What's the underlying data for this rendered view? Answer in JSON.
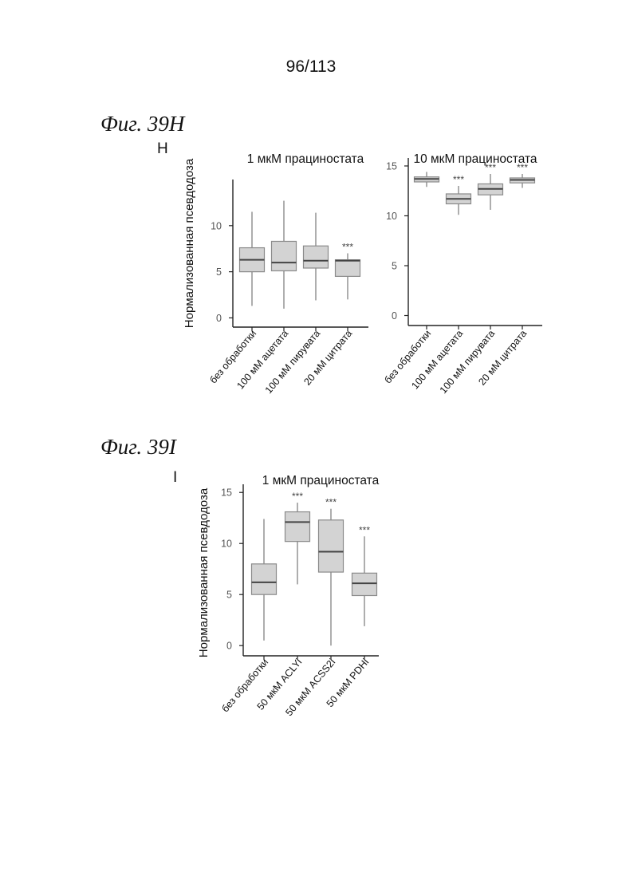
{
  "page_number": "96/113",
  "figures": {
    "fig_h_caption": "Фиг. 39H",
    "fig_h_letter": "H",
    "fig_i_caption": "Фиг. 39I",
    "fig_i_letter": "I"
  },
  "chart_data": [
    {
      "type": "box",
      "title": "1 мкМ прациностата",
      "ylabel": "Нормализованная псевдодоза",
      "xlabel": "",
      "ylim": [
        -1,
        15
      ],
      "yticks": [
        0,
        5,
        10
      ],
      "categories": [
        "без обработки",
        "100 мМ ацетата",
        "100 мМ пирувата",
        "20 мМ цитрата"
      ],
      "boxes": [
        {
          "min": 1.3,
          "q1": 5.0,
          "median": 6.3,
          "q3": 7.6,
          "max": 11.5,
          "sig": ""
        },
        {
          "min": 1.0,
          "q1": 5.1,
          "median": 6.0,
          "q3": 8.3,
          "max": 12.7,
          "sig": ""
        },
        {
          "min": 1.9,
          "q1": 5.4,
          "median": 6.2,
          "q3": 7.8,
          "max": 11.4,
          "sig": ""
        },
        {
          "min": 2.0,
          "q1": 4.5,
          "median": 6.2,
          "q3": 6.3,
          "max": 7.0,
          "sig": "***"
        }
      ]
    },
    {
      "type": "box",
      "title": "10 мкМ прациностата",
      "ylabel": "",
      "xlabel": "",
      "ylim": [
        -1,
        15.8
      ],
      "yticks": [
        0,
        5,
        10,
        15
      ],
      "categories": [
        "без обработки",
        "100 мМ ацетата",
        "100 мМ пирувата",
        "20 мМ цитрата"
      ],
      "boxes": [
        {
          "min": 12.9,
          "q1": 13.4,
          "median": 13.7,
          "q3": 13.9,
          "max": 14.4,
          "sig": ""
        },
        {
          "min": 10.1,
          "q1": 11.2,
          "median": 11.7,
          "q3": 12.2,
          "max": 13.0,
          "sig": "***"
        },
        {
          "min": 10.6,
          "q1": 12.1,
          "median": 12.7,
          "q3": 13.2,
          "max": 14.2,
          "sig": "***"
        },
        {
          "min": 12.8,
          "q1": 13.3,
          "median": 13.6,
          "q3": 13.8,
          "max": 14.2,
          "sig": "***"
        }
      ]
    },
    {
      "type": "box",
      "title": "1 мкМ прациностата",
      "ylabel": "Нормализованная псевдодоза",
      "xlabel": "",
      "ylim": [
        -1,
        15.8
      ],
      "yticks": [
        0,
        5,
        10,
        15
      ],
      "categories": [
        "без обработки",
        "50 мкМ ACLYi",
        "50 мкМ ACSS2i",
        "50 мкМ PDHi"
      ],
      "boxes": [
        {
          "min": 0.5,
          "q1": 5.0,
          "median": 6.2,
          "q3": 8.0,
          "max": 12.4,
          "sig": ""
        },
        {
          "min": 6.0,
          "q1": 10.2,
          "median": 12.1,
          "q3": 13.1,
          "max": 14.0,
          "sig": "***"
        },
        {
          "min": 0.0,
          "q1": 7.2,
          "median": 9.2,
          "q3": 12.3,
          "max": 13.4,
          "sig": "***"
        },
        {
          "min": 1.9,
          "q1": 4.9,
          "median": 6.1,
          "q3": 7.1,
          "max": 10.7,
          "sig": "***"
        }
      ]
    }
  ]
}
